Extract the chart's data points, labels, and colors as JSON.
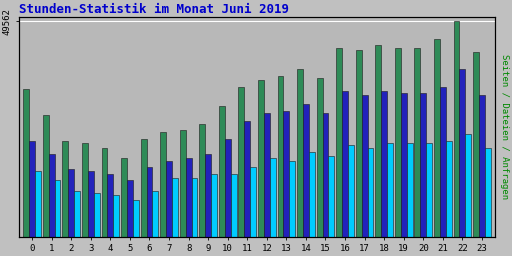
{
  "title": "Stunden-Statistik im Monat Juni 2019",
  "ylabel": "Seiten / Dateien / Anfragen",
  "max_val": 49562,
  "hours": [
    0,
    1,
    2,
    3,
    4,
    5,
    6,
    7,
    8,
    9,
    10,
    11,
    12,
    13,
    14,
    15,
    16,
    17,
    18,
    19,
    20,
    21,
    22,
    23
  ],
  "seiten": [
    34000,
    28000,
    22000,
    21500,
    20500,
    18000,
    22500,
    24000,
    24500,
    26000,
    30000,
    34500,
    36000,
    37000,
    38500,
    36500,
    43500,
    43000,
    44000,
    43500,
    43500,
    45500,
    49562,
    42500
  ],
  "dateien": [
    22000,
    19000,
    15500,
    15000,
    14500,
    13000,
    16000,
    17500,
    18000,
    19000,
    22500,
    26500,
    28500,
    29000,
    30500,
    28500,
    33500,
    32500,
    33500,
    33000,
    33000,
    34500,
    38500,
    32500
  ],
  "anfragen": [
    15000,
    13000,
    10500,
    10000,
    9500,
    8500,
    10500,
    13500,
    13500,
    14500,
    14500,
    16000,
    18000,
    17500,
    19500,
    18500,
    21000,
    20500,
    21500,
    21500,
    21500,
    22000,
    23500,
    20500
  ],
  "color_seiten": "#2e8b57",
  "color_dateien": "#2222bb",
  "color_anfragen": "#00ccff",
  "bg_color": "#c0c0c0",
  "plot_bg": "#b8b8b8",
  "title_color": "#0000cc",
  "ylabel_color": "#008800",
  "border_color": "#000000",
  "ytick_label": "49562",
  "bar_width": 0.3,
  "fig_width": 5.12,
  "fig_height": 2.56,
  "dpi": 100
}
